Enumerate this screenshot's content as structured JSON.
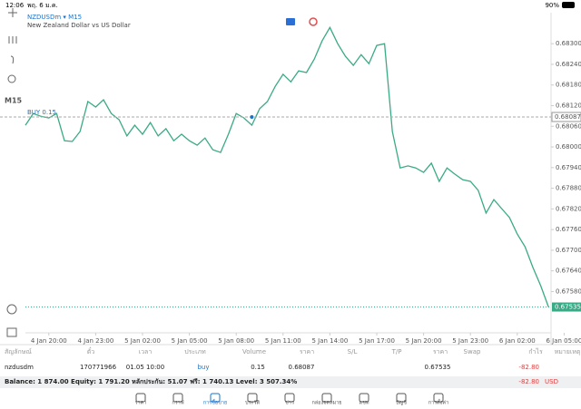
{
  "status": {
    "time": "12:06",
    "date": "พฤ. 6 ม.ค.",
    "battery": "90%"
  },
  "chart_data": {
    "type": "line",
    "title": "NZDUSDm ▾ M15",
    "subtitle": "New Zealand Dollar vs US Dollar",
    "timeframe": "M15",
    "categories": [
      null,
      null,
      null,
      "4 Jan 20:00",
      null,
      null,
      null,
      null,
      null,
      "4 Jan 23:00",
      null,
      null,
      null,
      null,
      null,
      "5 Jan 02:00",
      null,
      null,
      null,
      null,
      null,
      "5 Jan 05:00",
      null,
      null,
      null,
      null,
      null,
      "5 Jan 08:00",
      null,
      null,
      null,
      null,
      null,
      "5 Jan 11:00",
      null,
      null,
      null,
      null,
      null,
      "5 Jan 14:00",
      null,
      null,
      null,
      null,
      null,
      "5 Jan 17:00",
      null,
      null,
      null,
      null,
      null,
      "5 Jan 20:00",
      null,
      null,
      null,
      null,
      null,
      "5 Jan 23:00",
      null,
      null,
      null,
      null,
      null,
      "6 Jan 02:00",
      null,
      null,
      null,
      null,
      null,
      "6 Jan 05:00"
    ],
    "series": [
      {
        "name": "NZDUSDm",
        "color": "#3aaa86",
        "values": [
          0.68063,
          0.68097,
          0.68089,
          0.68084,
          0.68097,
          0.68018,
          0.68016,
          0.68045,
          0.68132,
          0.68116,
          0.68137,
          0.68097,
          0.68079,
          0.68032,
          0.68063,
          0.68037,
          0.68071,
          0.68032,
          0.68053,
          0.68018,
          0.68037,
          0.68018,
          0.68005,
          0.68026,
          0.67992,
          0.67984,
          0.68037,
          0.68097,
          0.68084,
          0.68063,
          0.68111,
          0.68132,
          0.68176,
          0.68211,
          0.68189,
          0.68221,
          0.68216,
          0.68255,
          0.68308,
          0.68347,
          0.683,
          0.68263,
          0.68237,
          0.68268,
          0.68242,
          0.68295,
          0.683,
          0.68045,
          0.67939,
          0.67945,
          0.67939,
          0.67926,
          0.67953,
          0.679,
          0.67939,
          0.67921,
          0.67905,
          0.679,
          0.67874,
          0.67808,
          0.67847,
          0.67821,
          0.67795,
          0.67747,
          0.6771,
          0.6765,
          0.67597,
          0.67535,
          null,
          null
        ]
      }
    ],
    "ylim": [
      0.6746,
      0.6839
    ],
    "yticks": [
      {
        "value": 0.683,
        "label": "0.68300"
      },
      {
        "value": 0.6824,
        "label": "0.68240"
      },
      {
        "value": 0.6818,
        "label": "0.68180"
      },
      {
        "value": 0.6812,
        "label": "0.68120"
      },
      {
        "value": 0.6806,
        "label": "0.68060"
      },
      {
        "value": 0.68,
        "label": "0.68000"
      },
      {
        "value": 0.6794,
        "label": "0.67940"
      },
      {
        "value": 0.6788,
        "label": "0.67880"
      },
      {
        "value": 0.6782,
        "label": "0.67820"
      },
      {
        "value": 0.6776,
        "label": "0.67760"
      },
      {
        "value": 0.677,
        "label": "0.67700"
      },
      {
        "value": 0.6764,
        "label": "0.67640"
      },
      {
        "value": 0.6758,
        "label": "0.67580"
      }
    ],
    "buy_line": {
      "text": "BUY 0.15",
      "value": 0.68087,
      "label": "0.68087"
    },
    "current_price": {
      "value": 0.67535,
      "label": "0.67535"
    }
  },
  "table": {
    "headers": [
      "สัญลักษณ์",
      "ตั๋ว",
      "เวลา",
      "ประเภท",
      "Volume",
      "ราคา",
      "S/L",
      "T/P",
      "ราคา",
      "Swap",
      "กำไร",
      "หมายเหตุ"
    ],
    "row": [
      "nzdusdm",
      "170771966",
      "01.05 10:00",
      "buy",
      "0.15",
      "0.68087",
      "",
      "",
      "0.67535",
      "",
      "-82.80",
      ""
    ],
    "balance": "Balance: 1 874.00 Equity: 1 791.20 หลักประกัน: 51.07 ฟรี: 1 740.13 Level: 3 507.34%",
    "profit": "-82.80",
    "currency": "USD"
  },
  "tabs": [
    "ราคา",
    "กราฟ",
    "การซื้อขาย",
    "ประวัติ",
    "ข่าว",
    "กล่องจดหมาย",
    "แชท",
    "บัญชี",
    "การตั้งค่า"
  ]
}
